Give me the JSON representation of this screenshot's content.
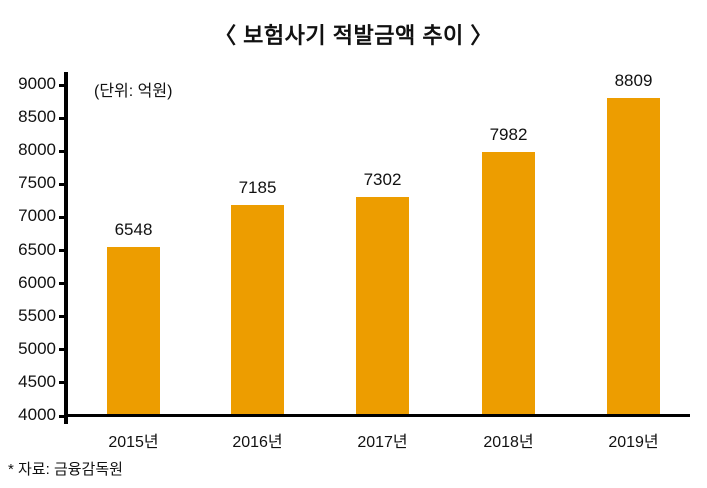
{
  "title": "〈 보험사기 적발금액 추이 〉",
  "unit_note": "(단위: 억원)",
  "source_note": "* 자료: 금융감독원",
  "colors": {
    "bar": "#ED9D00",
    "axis": "#000000",
    "text": "#111111"
  },
  "y_ticks": [
    "9000",
    "8500",
    "8000",
    "7500",
    "7000",
    "6500",
    "6000",
    "5500",
    "5000",
    "4500",
    "4000"
  ],
  "categories": [
    "2015년",
    "2016년",
    "2017년",
    "2018년",
    "2019년"
  ],
  "value_labels": [
    "6548",
    "7185",
    "7302",
    "7982",
    "8809"
  ],
  "chart_data": {
    "type": "bar",
    "title": "보험사기 적발금액 추이",
    "subtitle": "(단위: 억원)",
    "categories": [
      "2015년",
      "2016년",
      "2017년",
      "2018년",
      "2019년"
    ],
    "values": [
      6548,
      7185,
      7302,
      7982,
      8809
    ],
    "xlabel": "",
    "ylabel": "",
    "ylim": [
      4000,
      9000
    ],
    "yticks": [
      4000,
      4500,
      5000,
      5500,
      6000,
      6500,
      7000,
      7500,
      8000,
      8500,
      9000
    ],
    "grid": false,
    "legend": null,
    "data_labels": true,
    "annotations": [
      "* 자료: 금융감독원"
    ]
  }
}
